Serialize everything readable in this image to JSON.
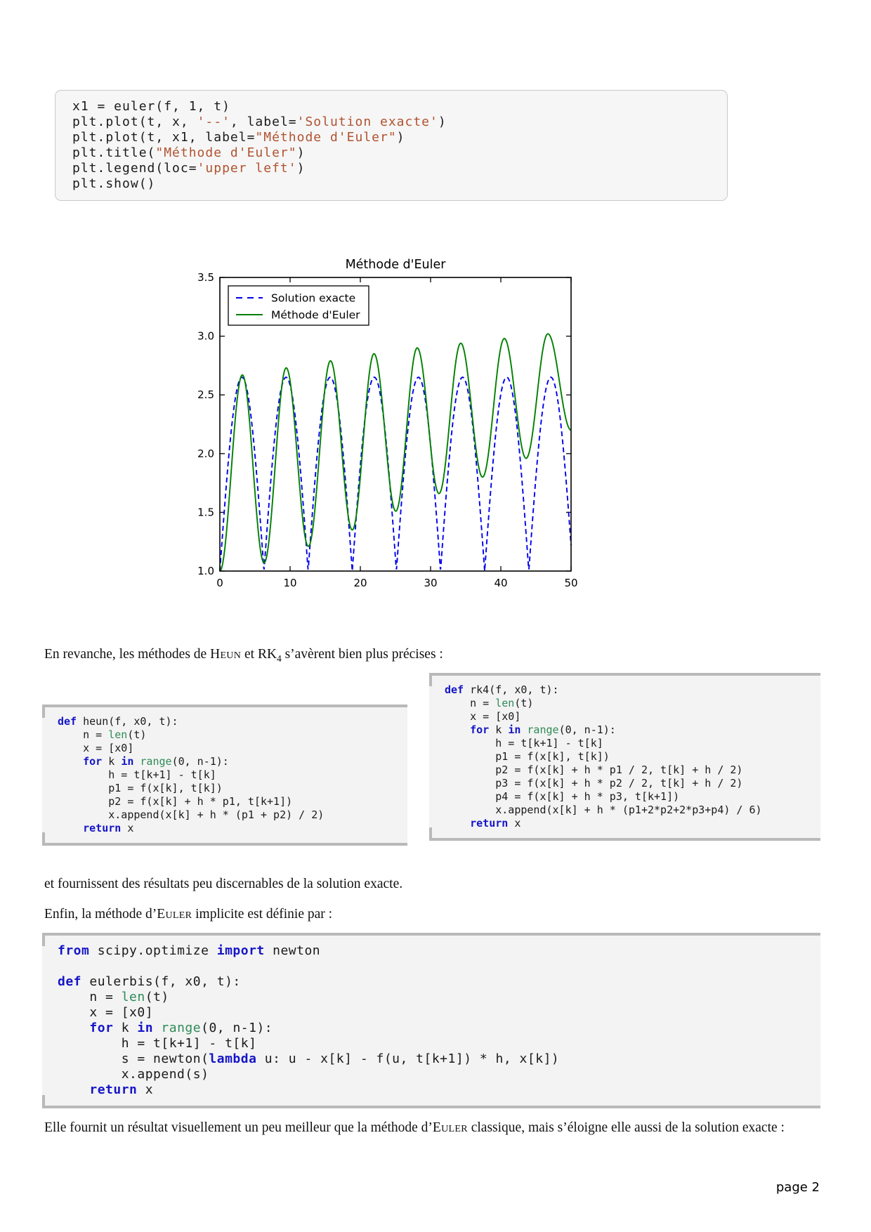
{
  "page": {
    "number": "page 2",
    "background": "#ffffff"
  },
  "colors": {
    "keyword": "#1515c8",
    "builtin": "#2e8b57",
    "string": "#b0532f",
    "code_background": "#f3f3f3",
    "bracket_rule": "#b9b9b9",
    "exact_line": "#0000ee",
    "euler_line": "#008000"
  },
  "code_blocks": [
    {
      "name": "euler-plot-snippet",
      "style": "rounded",
      "lines": [
        [
          {
            "t": "x1 = euler(f, 1, t)",
            "c": "p"
          }
        ],
        [
          {
            "t": "plt.plot(t, x, ",
            "c": "p"
          },
          {
            "t": "'--'",
            "c": "s"
          },
          {
            "t": ", label=",
            "c": "p"
          },
          {
            "t": "'Solution exacte'",
            "c": "s"
          },
          {
            "t": ")",
            "c": "p"
          }
        ],
        [
          {
            "t": "plt.plot(t, x1, label=",
            "c": "p"
          },
          {
            "t": "\"Méthode d'Euler\"",
            "c": "s"
          },
          {
            "t": ")",
            "c": "p"
          }
        ],
        [
          {
            "t": "plt.title(",
            "c": "p"
          },
          {
            "t": "\"Méthode d'Euler\"",
            "c": "s"
          },
          {
            "t": ")",
            "c": "p"
          }
        ],
        [
          {
            "t": "plt.legend(loc=",
            "c": "p"
          },
          {
            "t": "'upper left'",
            "c": "s"
          },
          {
            "t": ")",
            "c": "p"
          }
        ],
        [
          {
            "t": "plt.show()",
            "c": "p"
          }
        ]
      ]
    },
    {
      "name": "heun-function",
      "style": "bracket",
      "lines": [
        [
          {
            "t": "def",
            "c": "k"
          },
          {
            "t": " heun(f, x0, t):",
            "c": "p"
          }
        ],
        [
          {
            "t": "    n = ",
            "c": "p"
          },
          {
            "t": "len",
            "c": "b"
          },
          {
            "t": "(t)",
            "c": "p"
          }
        ],
        [
          {
            "t": "    x = [x0]",
            "c": "p"
          }
        ],
        [
          {
            "t": "    ",
            "c": "p"
          },
          {
            "t": "for",
            "c": "k"
          },
          {
            "t": " k ",
            "c": "p"
          },
          {
            "t": "in",
            "c": "k"
          },
          {
            "t": " ",
            "c": "p"
          },
          {
            "t": "range",
            "c": "b"
          },
          {
            "t": "(0, n-1):",
            "c": "p"
          }
        ],
        [
          {
            "t": "        h = t[k+1] - t[k]",
            "c": "p"
          }
        ],
        [
          {
            "t": "        p1 = f(x[k], t[k])",
            "c": "p"
          }
        ],
        [
          {
            "t": "        p2 = f(x[k] + h * p1, t[k+1])",
            "c": "p"
          }
        ],
        [
          {
            "t": "        x.append(x[k] + h * (p1 + p2) / 2)",
            "c": "p"
          }
        ],
        [
          {
            "t": "    ",
            "c": "p"
          },
          {
            "t": "return",
            "c": "k"
          },
          {
            "t": " x",
            "c": "p"
          }
        ]
      ]
    },
    {
      "name": "rk4-function",
      "style": "bracket",
      "lines": [
        [
          {
            "t": "def",
            "c": "k"
          },
          {
            "t": " rk4(f, x0, t):",
            "c": "p"
          }
        ],
        [
          {
            "t": "    n = ",
            "c": "p"
          },
          {
            "t": "len",
            "c": "b"
          },
          {
            "t": "(t)",
            "c": "p"
          }
        ],
        [
          {
            "t": "    x = [x0]",
            "c": "p"
          }
        ],
        [
          {
            "t": "    ",
            "c": "p"
          },
          {
            "t": "for",
            "c": "k"
          },
          {
            "t": " k ",
            "c": "p"
          },
          {
            "t": "in",
            "c": "k"
          },
          {
            "t": " ",
            "c": "p"
          },
          {
            "t": "range",
            "c": "b"
          },
          {
            "t": "(0, n-1):",
            "c": "p"
          }
        ],
        [
          {
            "t": "        h = t[k+1] - t[k]",
            "c": "p"
          }
        ],
        [
          {
            "t": "        p1 = f(x[k], t[k])",
            "c": "p"
          }
        ],
        [
          {
            "t": "        p2 = f(x[k] + h * p1 / 2, t[k] + h / 2)",
            "c": "p"
          }
        ],
        [
          {
            "t": "        p3 = f(x[k] + h * p2 / 2, t[k] + h / 2)",
            "c": "p"
          }
        ],
        [
          {
            "t": "        p4 = f(x[k] + h * p3, t[k+1])",
            "c": "p"
          }
        ],
        [
          {
            "t": "        x.append(x[k] + h * (p1+2*p2+2*p3+p4) / 6)",
            "c": "p"
          }
        ],
        [
          {
            "t": "    ",
            "c": "p"
          },
          {
            "t": "return",
            "c": "k"
          },
          {
            "t": " x",
            "c": "p"
          }
        ]
      ]
    },
    {
      "name": "euler-implicit-function",
      "style": "bracket",
      "lines": [
        [
          {
            "t": "from",
            "c": "k"
          },
          {
            "t": " scipy.optimize ",
            "c": "p"
          },
          {
            "t": "import",
            "c": "k"
          },
          {
            "t": " newton",
            "c": "p"
          }
        ],
        [],
        [
          {
            "t": "def",
            "c": "k"
          },
          {
            "t": " eulerbis(f, x0, t):",
            "c": "p"
          }
        ],
        [
          {
            "t": "    n = ",
            "c": "p"
          },
          {
            "t": "len",
            "c": "b"
          },
          {
            "t": "(t)",
            "c": "p"
          }
        ],
        [
          {
            "t": "    x = [x0]",
            "c": "p"
          }
        ],
        [
          {
            "t": "    ",
            "c": "p"
          },
          {
            "t": "for",
            "c": "k"
          },
          {
            "t": " k ",
            "c": "p"
          },
          {
            "t": "in",
            "c": "k"
          },
          {
            "t": " ",
            "c": "p"
          },
          {
            "t": "range",
            "c": "b"
          },
          {
            "t": "(0, n-1):",
            "c": "p"
          }
        ],
        [
          {
            "t": "        h = t[k+1] - t[k]",
            "c": "p"
          }
        ],
        [
          {
            "t": "        s = newton(",
            "c": "p"
          },
          {
            "t": "lambda",
            "c": "k"
          },
          {
            "t": " u: u - x[k] - f(u, t[k+1]) * h, x[k])",
            "c": "p"
          }
        ],
        [
          {
            "t": "        x.append(s)",
            "c": "p"
          }
        ],
        [
          {
            "t": "    ",
            "c": "p"
          },
          {
            "t": "return",
            "c": "k"
          },
          {
            "t": " x",
            "c": "p"
          }
        ]
      ]
    }
  ],
  "paragraphs": [
    {
      "name": "para-heun-rk4",
      "segments": [
        {
          "t": "En revanche, les méthodes de ",
          "c": "p"
        },
        {
          "t": "Heun",
          "c": "sc"
        },
        {
          "t": " et RK",
          "c": "p"
        },
        {
          "t": "4",
          "c": "sub"
        },
        {
          "t": " s’avèrent bien plus précises :",
          "c": "p"
        }
      ]
    },
    {
      "name": "para-resultats",
      "segments": [
        {
          "t": "et fournissent des résultats peu discernables de la solution exacte.",
          "c": "p"
        }
      ]
    },
    {
      "name": "para-euler-implicite",
      "segments": [
        {
          "t": "Enfin, la méthode d’",
          "c": "p"
        },
        {
          "t": "Euler",
          "c": "sc"
        },
        {
          "t": " implicite est définie par :",
          "c": "p"
        }
      ]
    },
    {
      "name": "para-elle-fournit",
      "segments": [
        {
          "t": "Elle fournit un résultat visuellement un peu meilleur que la méthode d’",
          "c": "p"
        },
        {
          "t": "Euler",
          "c": "sc"
        },
        {
          "t": " classique, mais s’éloigne elle aussi de la solution exacte :",
          "c": "p"
        }
      ]
    }
  ],
  "chart_data": {
    "type": "line",
    "title": "Méthode d'Euler",
    "xlabel": "",
    "ylabel": "",
    "xlim": [
      0,
      50
    ],
    "ylim": [
      1.0,
      3.5
    ],
    "xticks": [
      0,
      10,
      20,
      30,
      40,
      50
    ],
    "yticks": [
      1.0,
      1.5,
      2.0,
      2.5,
      3.0,
      3.5
    ],
    "grid": false,
    "legend": {
      "loc": "upper left",
      "entries": [
        "Solution exacte",
        "Méthode d'Euler"
      ]
    },
    "series": [
      {
        "name": "Solution exacte",
        "style": "dashed",
        "color": "#0000ee",
        "model": "abs_sine",
        "base": 1.0,
        "amplitude": 1.65,
        "period": 6.2832
      },
      {
        "name": "Méthode d'Euler",
        "style": "solid",
        "color": "#008000",
        "model": "keypoints",
        "points": [
          [
            0,
            1.0
          ],
          [
            3.2,
            2.67
          ],
          [
            6.3,
            1.07
          ],
          [
            9.45,
            2.73
          ],
          [
            12.6,
            1.21
          ],
          [
            15.75,
            2.79
          ],
          [
            18.85,
            1.35
          ],
          [
            21.95,
            2.85
          ],
          [
            25.05,
            1.51
          ],
          [
            28.1,
            2.9
          ],
          [
            31.2,
            1.66
          ],
          [
            34.3,
            2.94
          ],
          [
            37.4,
            1.8
          ],
          [
            40.5,
            2.98
          ],
          [
            43.6,
            1.96
          ],
          [
            46.7,
            3.02
          ],
          [
            50,
            2.2
          ]
        ]
      }
    ]
  }
}
